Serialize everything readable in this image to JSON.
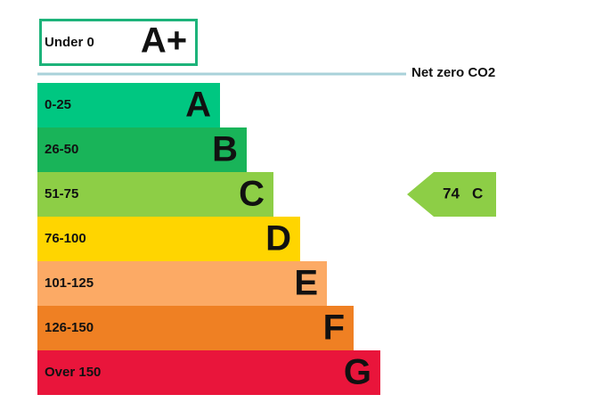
{
  "top_band": {
    "range": "Under 0",
    "letter": "A+",
    "color": "#1db37a"
  },
  "net_zero": {
    "label": "Net zero CO2",
    "color": "#a9d2da"
  },
  "bands": [
    {
      "range": "0-25",
      "letter": "A",
      "color": "#00c781"
    },
    {
      "range": "26-50",
      "letter": "B",
      "color": "#19b459"
    },
    {
      "range": "51-75",
      "letter": "C",
      "color": "#8dce46"
    },
    {
      "range": "76-100",
      "letter": "D",
      "color": "#ffd500"
    },
    {
      "range": "101-125",
      "letter": "E",
      "color": "#fcaa65"
    },
    {
      "range": "126-150",
      "letter": "F",
      "color": "#ef8023"
    },
    {
      "range": "Over 150",
      "letter": "G",
      "color": "#e9153b"
    }
  ],
  "current": {
    "score": 74,
    "letter": "C",
    "band": 2
  }
}
